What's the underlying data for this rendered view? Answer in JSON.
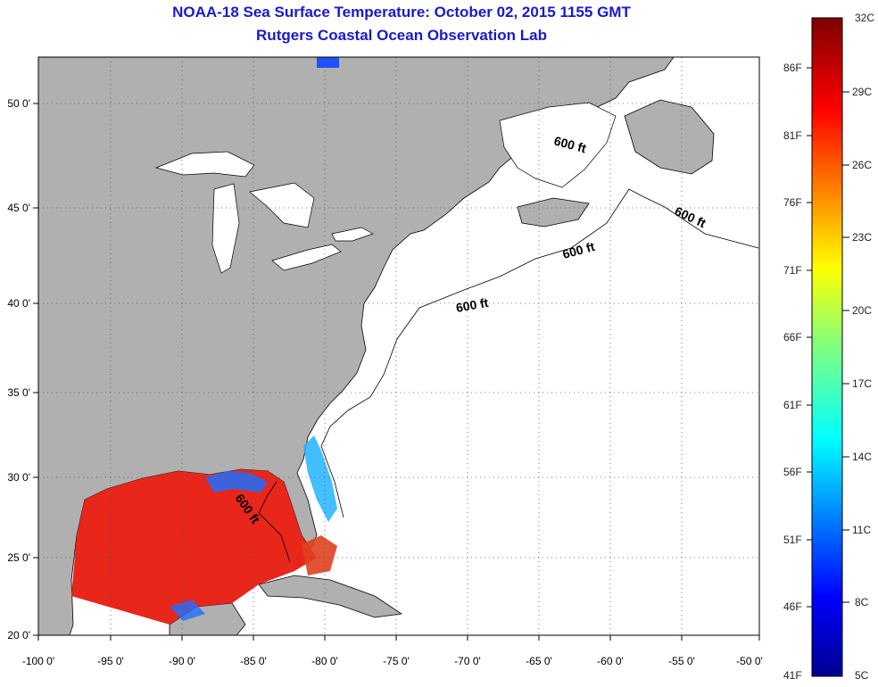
{
  "title": "NOAA-18 Sea Surface Temperature:  October 02, 2015 1155 GMT",
  "subtitle": "Rutgers Coastal Ocean Observation Lab",
  "colors": {
    "title": "#1a1acc",
    "land": "#b0b0b0",
    "ocean": "#ffffff",
    "warm_sst": "#e8261a"
  },
  "map": {
    "lon_range": [
      -100,
      -50
    ],
    "lat_range": [
      20,
      52
    ],
    "lon_ticks": [
      "-100 0'",
      "-95 0'",
      "-90 0'",
      "-85 0'",
      "-80 0'",
      "-75 0'",
      "-70 0'",
      "-65 0'",
      "-60 0'",
      "-55 0'",
      "-50 0'"
    ],
    "lat_ticks": [
      "20 0'",
      "25 0'",
      "30 0'",
      "35 0'",
      "40 0'",
      "45 0'",
      "50 0'"
    ],
    "grid": true,
    "contour_labels": [
      "600 ft",
      "600 ft",
      "600 ft",
      "600 ft",
      "600 ft"
    ]
  },
  "colorbar": {
    "celsius": [
      "32C",
      "29C",
      "26C",
      "23C",
      "20C",
      "17C",
      "14C",
      "11C",
      "8C",
      "5C"
    ],
    "fahrenheit": [
      "86F",
      "81F",
      "76F",
      "71F",
      "66F",
      "61F",
      "56F",
      "51F",
      "46F",
      "41F"
    ]
  }
}
